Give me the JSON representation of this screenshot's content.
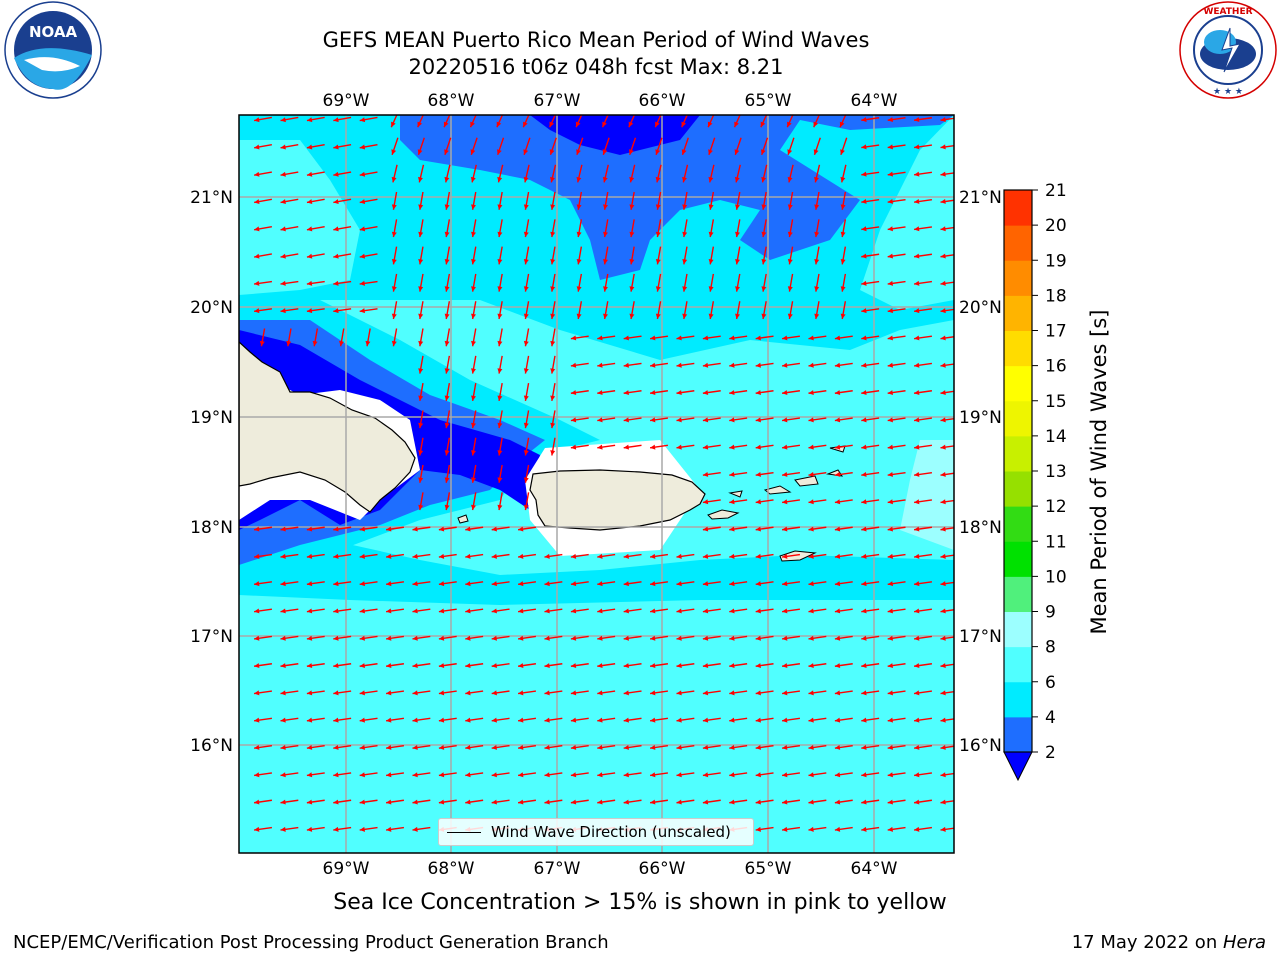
{
  "header": {
    "title_line1": "GEFS MEAN Puerto Rico Mean Period of Wind Waves",
    "title_line2": "20220516 t06z 048h fcst   Max: 8.21"
  },
  "logos": {
    "noaa_text": "NOAA",
    "nws_ring_text": "NATIONAL WEATHER SERVICE",
    "noaa_ring_text": "NATIONAL OCEANIC AND ATMOSPHERIC ADMINISTRATION · U.S. DEPARTMENT OF COMMERCE"
  },
  "map": {
    "lon_labels": [
      "69°W",
      "68°W",
      "67°W",
      "66°W",
      "65°W",
      "64°W"
    ],
    "lat_labels": [
      "21°N",
      "20°N",
      "19°N",
      "18°N",
      "17°N",
      "16°N"
    ],
    "legend_label": "Wind Wave Direction (unscaled)",
    "arrow_color": "#ff0000",
    "land_color": "#eeecdc"
  },
  "colorbar": {
    "title": "Mean Period of Wind Waves [s]",
    "ticks": [
      "2",
      "4",
      "6",
      "8",
      "9",
      "10",
      "11",
      "12",
      "13",
      "14",
      "15",
      "16",
      "17",
      "18",
      "19",
      "20",
      "21"
    ],
    "colors": [
      "#1e6eff",
      "#00ebff",
      "#50ffff",
      "#9cffff",
      "#50f07c",
      "#00e100",
      "#32dc14",
      "#96e000",
      "#c8f000",
      "#eef500",
      "#ffff00",
      "#ffdc00",
      "#ffb400",
      "#ff8c00",
      "#ff6400",
      "#ff3200"
    ],
    "extend_below_color": "#0000ff",
    "extend_above_color": "#ff0000"
  },
  "notes": {
    "sea_ice": "Sea Ice Concentration > 15% is shown in pink to yellow"
  },
  "footer": {
    "left": "NCEP/EMC/Verification Post Processing Product Generation Branch",
    "right_date": "17 May 2022 on ",
    "right_host": "Hera"
  }
}
